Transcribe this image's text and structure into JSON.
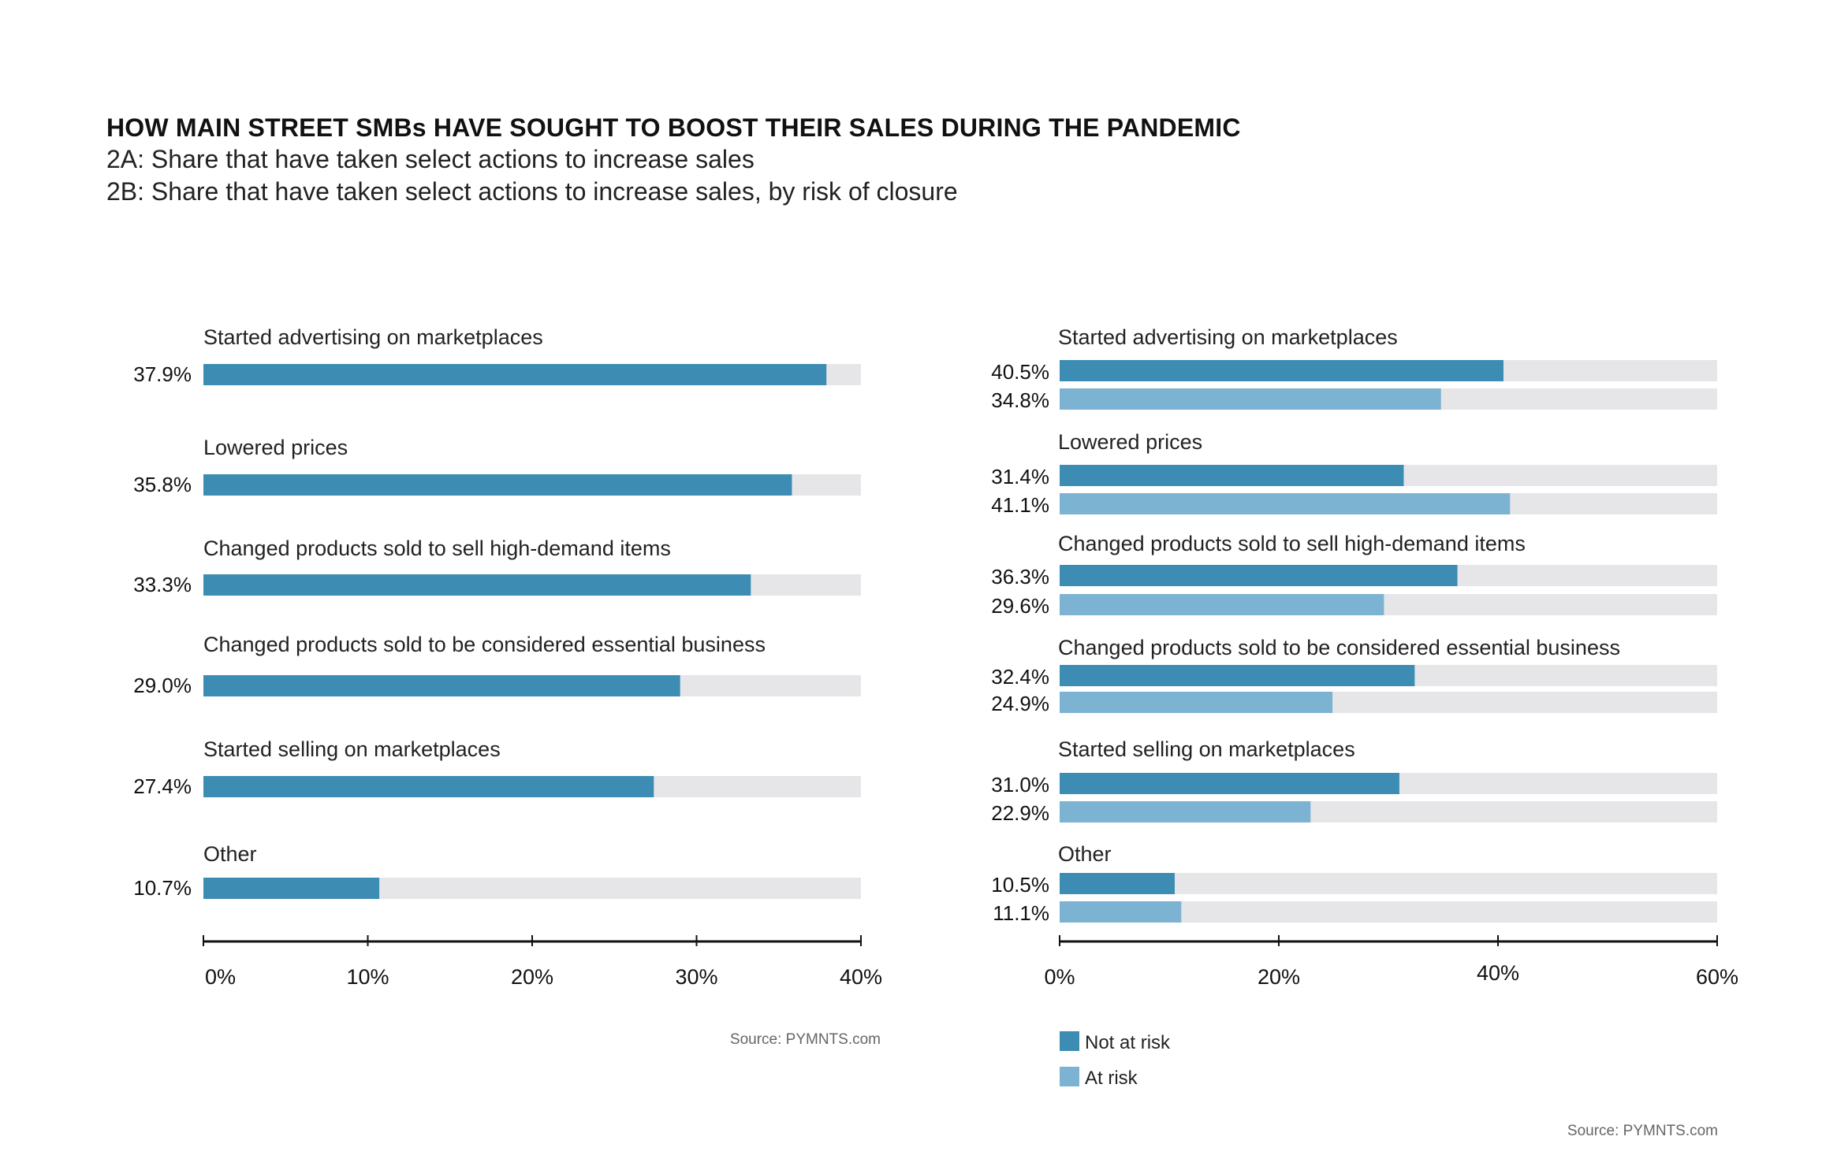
{
  "header": {
    "title": "HOW MAIN STREET SMBs HAVE SOUGHT TO BOOST THEIR SALES DURING THE PANDEMIC",
    "subtitle_a": "2A: Share that have taken select actions to increase sales",
    "subtitle_b": "2B: Share that have taken select actions to increase sales, by risk of closure"
  },
  "colors": {
    "not_at_risk": "#3c8cb4",
    "at_risk": "#7db3d2",
    "track": "#e6e6e8",
    "axis": "#111111"
  },
  "chart_data": [
    {
      "id": "2A",
      "type": "bar",
      "orientation": "horizontal",
      "categories": [
        "Started advertising on marketplaces",
        "Lowered prices",
        "Changed products sold to sell high-demand items",
        "Changed products sold to be considered essential business",
        "Started selling on marketplaces",
        "Other"
      ],
      "values": [
        37.9,
        35.8,
        33.3,
        29.0,
        27.4,
        10.7
      ],
      "value_labels": [
        "37.9%",
        "35.8%",
        "33.3%",
        "29.0%",
        "27.4%",
        "10.7%"
      ],
      "xlim": [
        0,
        40
      ],
      "xticks": [
        0,
        10,
        20,
        30,
        40
      ],
      "xtick_labels": [
        "0%",
        "10%",
        "20%",
        "30%",
        "40%"
      ],
      "grid": false,
      "source": "Source: PYMNTS.com"
    },
    {
      "id": "2B",
      "type": "bar",
      "orientation": "horizontal",
      "categories": [
        "Started advertising on marketplaces",
        "Lowered prices",
        "Changed products sold to sell high-demand items",
        "Changed products sold to be considered essential business",
        "Started selling on marketplaces",
        "Other"
      ],
      "series": [
        {
          "name": "Not at risk",
          "values": [
            40.5,
            31.4,
            36.3,
            32.4,
            31.0,
            10.5
          ],
          "value_labels": [
            "40.5%",
            "31.4%",
            "36.3%",
            "32.4%",
            "31.0%",
            "10.5%"
          ]
        },
        {
          "name": "At risk",
          "values": [
            34.8,
            41.1,
            29.6,
            24.9,
            22.9,
            11.1
          ],
          "value_labels": [
            "34.8%",
            "41.1%",
            "29.6%",
            "24.9%",
            "22.9%",
            "11.1%"
          ]
        }
      ],
      "xlim": [
        0,
        60
      ],
      "xticks": [
        0,
        20,
        40,
        60
      ],
      "xtick_labels": [
        "0%",
        "20%",
        "40%",
        "60%"
      ],
      "grid": false,
      "legend": {
        "placement": "bottom-left",
        "entries": [
          "Not at risk",
          "At risk"
        ]
      },
      "source": "Source: PYMNTS.com"
    }
  ]
}
